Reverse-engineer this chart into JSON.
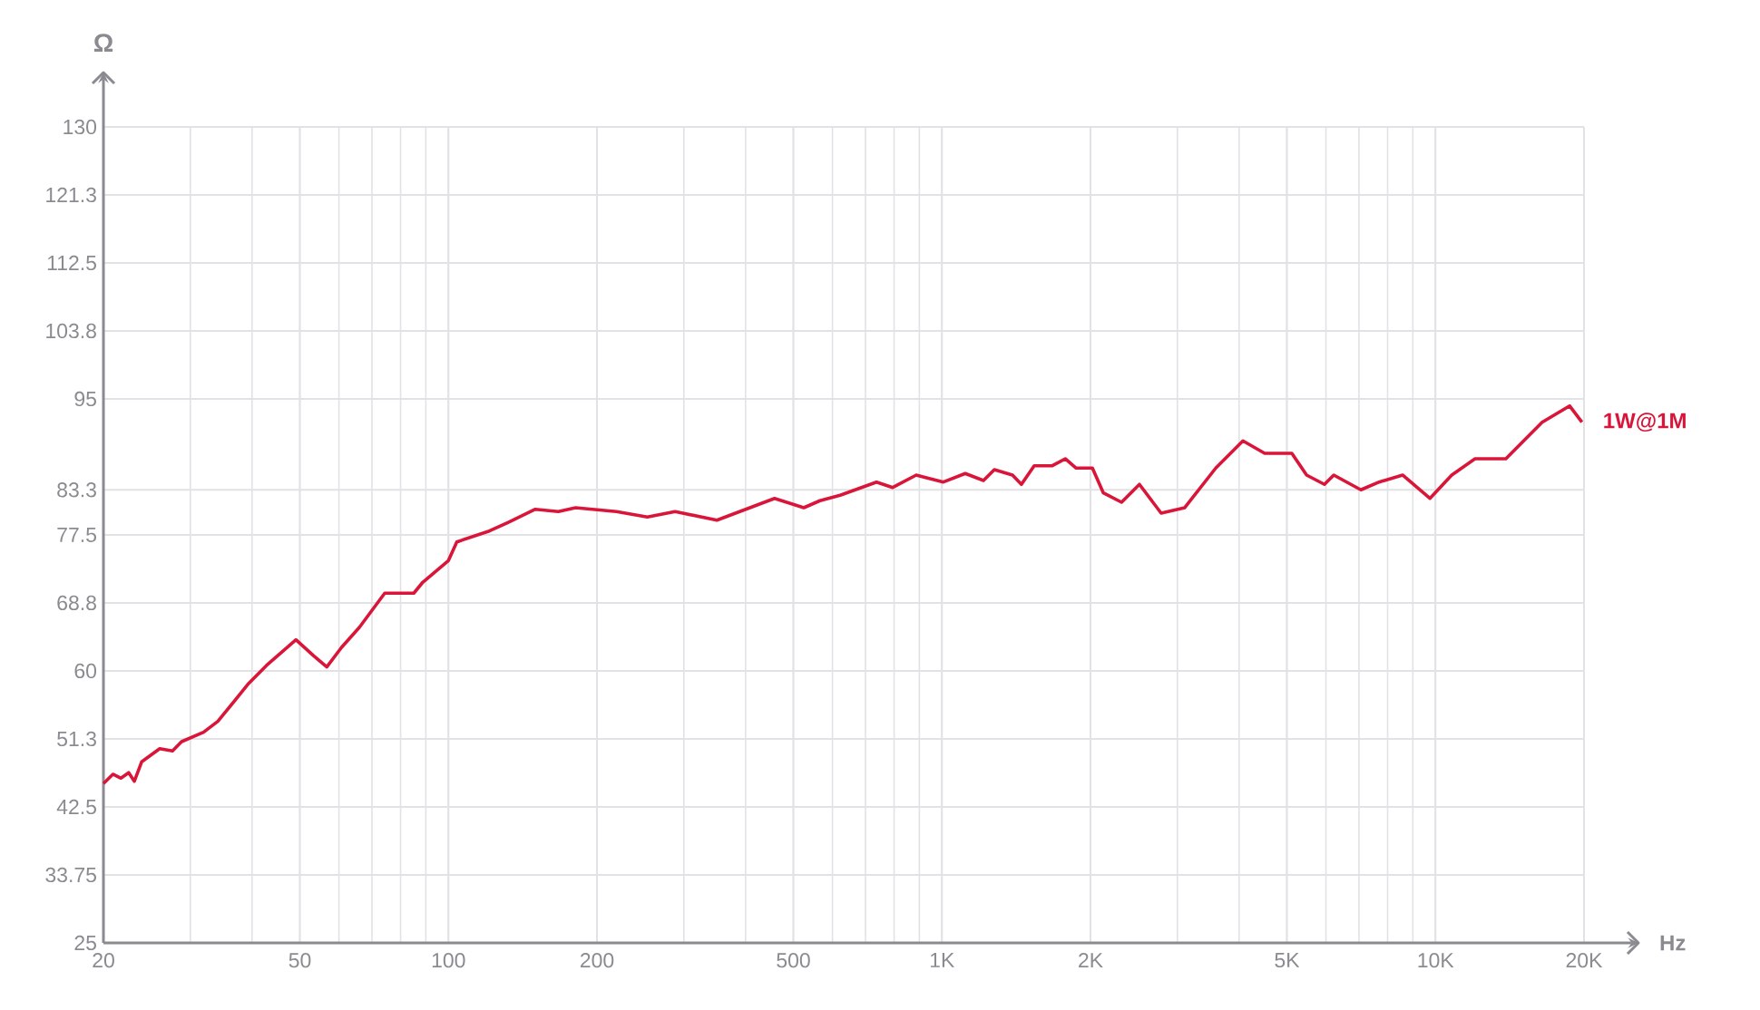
{
  "chart_data": {
    "type": "line",
    "xlabel": "Hz",
    "ylabel": "Ω",
    "log": "x",
    "grid": true,
    "legend": false,
    "marker": "none",
    "line_style": "solid",
    "xlim": [
      20,
      20000
    ],
    "ylim": [
      25,
      130
    ],
    "xticks": [
      20,
      50,
      100,
      200,
      500,
      {
        "value": 1000,
        "label": "1K"
      },
      {
        "value": 2000,
        "label": "2K"
      },
      {
        "value": 5000,
        "label": "5K"
      },
      {
        "value": 10000,
        "label": "10K"
      },
      {
        "value": 20000,
        "label": "20K"
      }
    ],
    "yticks": [
      25,
      33.75,
      42.5,
      {
        "value": 51.25,
        "label": "51.3"
      },
      60,
      {
        "value": 68.75,
        "label": "68.8"
      },
      77.5,
      83.3,
      95,
      {
        "value": 103.75,
        "label": "103.8"
      },
      112.5,
      {
        "value": 121.25,
        "label": "121.3"
      },
      130
    ],
    "series": [
      {
        "name": "1W@1M",
        "color": "#d9163a",
        "x": [
          20,
          20.9,
          21.7,
          22.5,
          23.1,
          23.9,
          26.0,
          27.6,
          28.8,
          31.9,
          34.1,
          39.4,
          42.8,
          49.1,
          53.4,
          56.7,
          60.7,
          66.0,
          74.3,
          85.1,
          88.7,
          100,
          104,
          121,
          132,
          150,
          167,
          181,
          219,
          253,
          288,
          350,
          458,
          525,
          566,
          622,
          737,
          795,
          887,
          1007,
          1115,
          1214,
          1277,
          1390,
          1449,
          1538,
          1674,
          1778,
          1871,
          2018,
          2124,
          2312,
          2513,
          2781,
          3105,
          3589,
          4073,
          4508,
          5117,
          5482,
          5957,
          6223,
          7063,
          7691,
          8579,
          9745,
          10790,
          12030,
          13890,
          16450,
          18700,
          19810
        ],
        "values": [
          45.5,
          46.7,
          46.2,
          46.9,
          45.8,
          48.3,
          50.0,
          49.7,
          50.9,
          52.1,
          53.5,
          58.4,
          60.7,
          64.0,
          61.9,
          60.5,
          63.0,
          65.6,
          70.0,
          70.0,
          71.4,
          74.2,
          76.6,
          78.0,
          79.1,
          80.8,
          80.5,
          81.0,
          80.5,
          79.8,
          80.5,
          79.4,
          82.2,
          81.0,
          81.9,
          82.6,
          84.3,
          83.6,
          85.2,
          84.3,
          85.4,
          84.5,
          85.9,
          85.2,
          84.0,
          86.4,
          86.4,
          87.3,
          86.1,
          86.1,
          82.9,
          81.7,
          84.0,
          80.3,
          81.0,
          86.1,
          89.6,
          88.0,
          88.0,
          85.2,
          84.0,
          85.2,
          83.3,
          84.3,
          85.2,
          82.2,
          85.2,
          87.3,
          87.3,
          92.0,
          94.1,
          92.0
        ]
      }
    ]
  }
}
